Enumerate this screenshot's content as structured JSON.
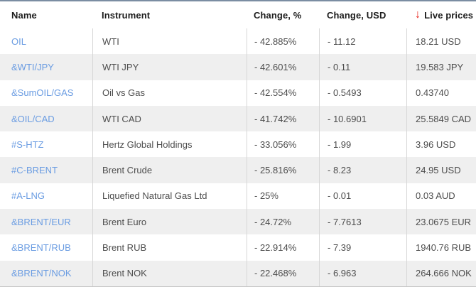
{
  "table": {
    "columns": [
      {
        "label": "Name"
      },
      {
        "label": "Instrument"
      },
      {
        "label": "Change, %"
      },
      {
        "label": "Change, USD"
      },
      {
        "label": "Live prices",
        "sort_icon": "red-down-arrow",
        "sort_icon_glyph": "↓"
      }
    ],
    "rows": [
      {
        "name": "OIL",
        "instrument": "WTI",
        "change_pct": "- 42.885%",
        "change_usd": "- 11.12",
        "live_price": "18.21 USD"
      },
      {
        "name": "&WTI/JPY",
        "instrument": "WTI JPY",
        "change_pct": "- 42.601%",
        "change_usd": "- 0.11",
        "live_price": "19.583 JPY"
      },
      {
        "name": "&SumOIL/GAS",
        "instrument": "Oil vs Gas",
        "change_pct": "- 42.554%",
        "change_usd": "- 0.5493",
        "live_price": "0.43740"
      },
      {
        "name": "&OIL/CAD",
        "instrument": "WTI CAD",
        "change_pct": "- 41.742%",
        "change_usd": "- 10.6901",
        "live_price": "25.5849 CAD"
      },
      {
        "name": "#S-HTZ",
        "instrument": "Hertz Global Holdings",
        "change_pct": "- 33.056%",
        "change_usd": "- 1.99",
        "live_price": "3.96 USD"
      },
      {
        "name": "#C-BRENT",
        "instrument": "Brent Crude",
        "change_pct": "- 25.816%",
        "change_usd": "- 8.23",
        "live_price": "24.95 USD"
      },
      {
        "name": "#A-LNG",
        "instrument": "Liquefied Natural Gas Ltd",
        "change_pct": "- 25%",
        "change_usd": "- 0.01",
        "live_price": "0.03 AUD"
      },
      {
        "name": "&BRENT/EUR",
        "instrument": "Brent Euro",
        "change_pct": "- 24.72%",
        "change_usd": "- 7.7613",
        "live_price": "23.0675 EUR"
      },
      {
        "name": "&BRENT/RUB",
        "instrument": "Brent RUB",
        "change_pct": "- 22.914%",
        "change_usd": "- 7.39",
        "live_price": "1940.76 RUB"
      },
      {
        "name": "&BRENT/NOK",
        "instrument": "Brent NOK",
        "change_pct": "- 22.468%",
        "change_usd": "- 6.963",
        "live_price": "264.666 NOK"
      }
    ]
  },
  "colors": {
    "top_border": "#7b8da2",
    "alt_row_background": "#efefef",
    "column_separator": "#d7d7d7",
    "bottom_border": "#c6c6c6",
    "name_link": "#6a9ce2",
    "cell_text": "#4d4d4d",
    "header_text": "#1c1c1c",
    "sort_arrow_red": "#e8251c"
  }
}
